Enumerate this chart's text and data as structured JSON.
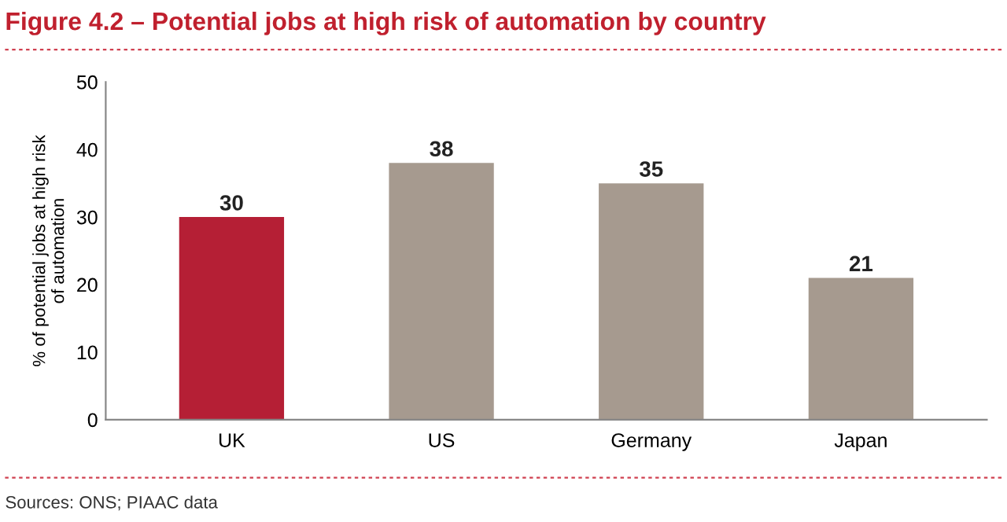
{
  "chart_data": {
    "type": "bar",
    "title": "Figure 4.2 – Potential jobs at high risk of automation by country",
    "ylabel": "% of potential jobs at high risk\nof automation",
    "categories": [
      "UK",
      "US",
      "Germany",
      "Japan"
    ],
    "values": [
      30,
      38,
      35,
      21
    ],
    "colors": [
      "#b51f35",
      "#a69a8f",
      "#a69a8f",
      "#a69a8f"
    ],
    "ylim": [
      0,
      50
    ],
    "yticks": [
      0,
      10,
      20,
      30,
      40,
      50
    ],
    "data_labels": true,
    "grid": false,
    "legend": false,
    "annotations": [
      "Sources: ONS; PIAAC data"
    ]
  }
}
